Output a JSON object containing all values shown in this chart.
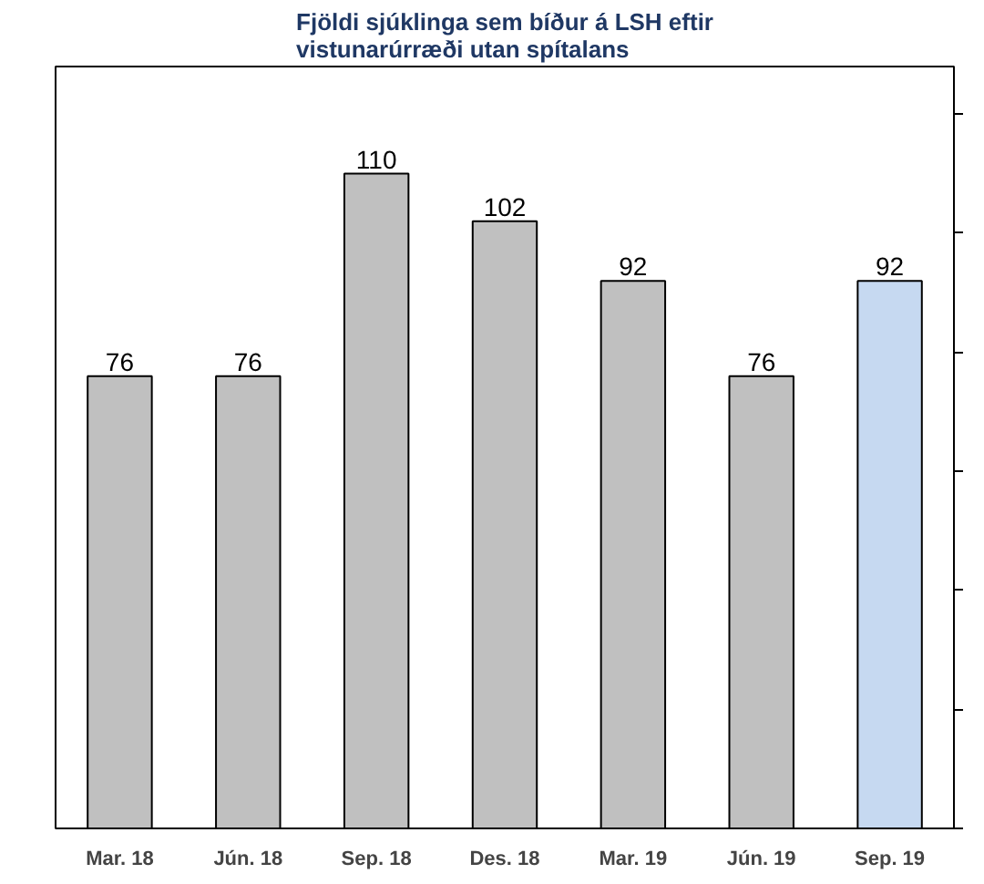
{
  "chart_data": {
    "type": "bar",
    "title": "Fjöldi sjúklinga sem bíður á LSH eftir\nvistunarúrræði utan spítalans",
    "categories": [
      "Mar. 18",
      "Jún. 18",
      "Sep. 18",
      "Des. 18",
      "Mar. 19",
      "Jún. 19",
      "Sep. 19"
    ],
    "values": [
      76,
      76,
      110,
      102,
      92,
      76,
      92
    ],
    "colors": [
      "#c0c0c0",
      "#c0c0c0",
      "#c0c0c0",
      "#c0c0c0",
      "#c0c0c0",
      "#c0c0c0",
      "#c6d9f1"
    ],
    "ylim": [
      0,
      128
    ],
    "yticks": [
      {
        "value": 0,
        "label": null
      },
      {
        "value": 20,
        "label": null
      },
      {
        "value": 40,
        "label": null
      },
      {
        "value": 60,
        "label": null
      },
      {
        "value": 80,
        "label": null
      },
      {
        "value": 100,
        "label": null
      },
      {
        "value": 120,
        "label": null
      }
    ],
    "data_labels": true,
    "grid": false
  }
}
